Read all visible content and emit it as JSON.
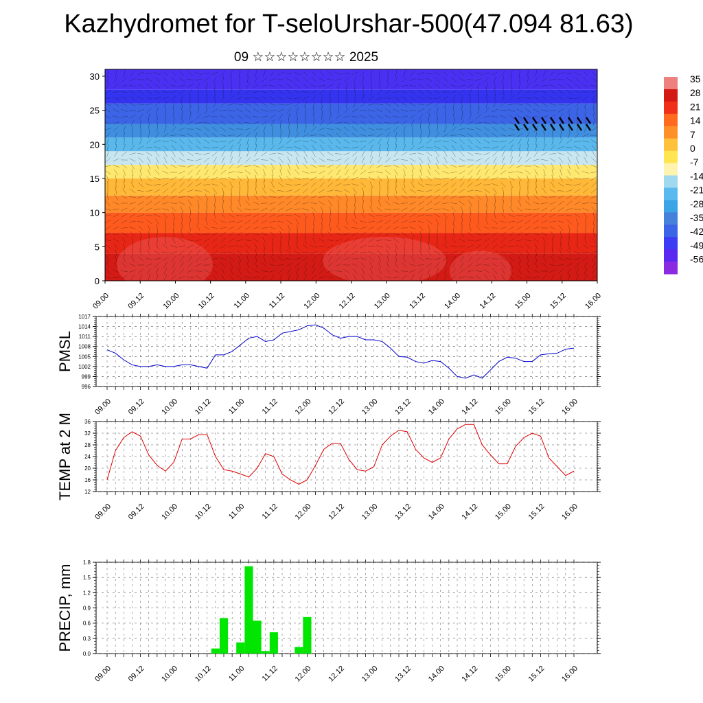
{
  "title": "Kazhydromet for T-seloUrshar-500(47.094 81.63)",
  "subtitle": "09 ☆☆☆☆☆☆☆☆ 2025",
  "time_labels": [
    "09.00",
    "09.12",
    "10.00",
    "10.12",
    "11.00",
    "11.12",
    "12.00",
    "12.12",
    "13.00",
    "13.12",
    "14.00",
    "14.12",
    "15.00",
    "15.12",
    "16.00"
  ],
  "colors": {
    "pmsl_line": "#0000cc",
    "temp_line": "#dd0000",
    "precip_bar": "#00e600",
    "palette": [
      "#8a2be2",
      "#5a28f0",
      "#3c3cf5",
      "#3c64e6",
      "#4682dc",
      "#3aa5e6",
      "#5abaf0",
      "#a0d8f0",
      "#fff3b0",
      "#ffe650",
      "#ffc03a",
      "#ff9028",
      "#ff6a1e",
      "#f03018",
      "#d41a14",
      "#ee8080"
    ]
  },
  "chart_data": [
    {
      "type": "heatmap",
      "name": "cross-section",
      "ylabel": "",
      "ylim": [
        0,
        31
      ],
      "y_ticks": [
        0,
        5,
        10,
        15,
        20,
        25,
        30
      ],
      "colorbar": {
        "ticks": [
          "35",
          "28",
          "21",
          "14",
          "7",
          "0",
          "-7",
          "-14",
          "-21",
          "-28",
          "-35",
          "-42",
          "-49",
          "-56"
        ]
      }
    },
    {
      "type": "line",
      "name": "PMSL",
      "ylabel": "PMSL",
      "ylim": [
        996,
        1017
      ],
      "y_ticks": [
        996,
        999,
        1002,
        1005,
        1008,
        1011,
        1014,
        1017
      ],
      "x": [
        0,
        1,
        2,
        3,
        4,
        5,
        6,
        7,
        8,
        9,
        10,
        11,
        12,
        13,
        14,
        15,
        16,
        17,
        18,
        19,
        20,
        21,
        22,
        23,
        24,
        25,
        26,
        27,
        28,
        29,
        30,
        31,
        32,
        33,
        34,
        35,
        36,
        37,
        38,
        39,
        40,
        41,
        42,
        43,
        44,
        45,
        46,
        47,
        48,
        49,
        50,
        51,
        52,
        53,
        54,
        55,
        56
      ],
      "values": [
        1007,
        1006,
        1004,
        1002.5,
        1002,
        1002,
        1002.5,
        1002,
        1002,
        1002.5,
        1002.5,
        1002,
        1001.5,
        1005.5,
        1005.5,
        1006.5,
        1008.5,
        1010.5,
        1011,
        1009.5,
        1010,
        1012,
        1012.5,
        1013,
        1014.2,
        1014.5,
        1013.5,
        1011.5,
        1010.5,
        1011,
        1011,
        1010,
        1010,
        1009.5,
        1007.5,
        1005,
        1004.8,
        1003.5,
        1003,
        1003.8,
        1003.5,
        1001.5,
        999,
        998.5,
        999.5,
        998.5,
        1001,
        1003.5,
        1004.8,
        1004.5,
        1003.5,
        1003.5,
        1005.5,
        1005.8,
        1006,
        1007.2,
        1007.5
      ]
    },
    {
      "type": "line",
      "name": "TEMP at 2 M",
      "ylabel": "TEMP at 2 M",
      "ylim": [
        12,
        36
      ],
      "y_ticks": [
        12,
        16,
        20,
        24,
        28,
        32,
        36
      ],
      "x": [
        0,
        1,
        2,
        3,
        4,
        5,
        6,
        7,
        8,
        9,
        10,
        11,
        12,
        13,
        14,
        15,
        16,
        17,
        18,
        19,
        20,
        21,
        22,
        23,
        24,
        25,
        26,
        27,
        28,
        29,
        30,
        31,
        32,
        33,
        34,
        35,
        36,
        37,
        38,
        39,
        40,
        41,
        42,
        43,
        44,
        45,
        46,
        47,
        48,
        49,
        50,
        51,
        52,
        53,
        54,
        55,
        56
      ],
      "values": [
        16,
        26,
        30.5,
        32.5,
        31,
        24.5,
        21,
        19,
        22,
        30,
        30,
        31.5,
        31.5,
        24,
        19.5,
        19,
        18,
        17,
        20,
        25,
        24,
        18,
        16,
        14.5,
        16,
        21,
        26.5,
        28.5,
        28.5,
        23,
        19.5,
        19,
        20.5,
        28,
        31,
        33,
        32.5,
        26.5,
        23.5,
        22,
        23.5,
        30,
        33.5,
        35,
        35,
        28,
        24.5,
        21.5,
        21.5,
        27.5,
        30.5,
        32,
        31,
        23.5,
        20.5,
        17.5,
        19
      ]
    },
    {
      "type": "bar",
      "name": "PRECIP, mm",
      "ylabel": "PRECIP, mm",
      "ylim": [
        0,
        1.8
      ],
      "y_ticks": [
        "0.0",
        "0.3",
        "0.6",
        "0.9",
        "1.2",
        "1.5",
        "1.8"
      ],
      "x": [
        0,
        1,
        2,
        3,
        4,
        5,
        6,
        7,
        8,
        9,
        10,
        11,
        12,
        13,
        14,
        15,
        16,
        17,
        18,
        19,
        20,
        21,
        22,
        23,
        24,
        25,
        26,
        27,
        28,
        29,
        30,
        31,
        32,
        33,
        34,
        35,
        36,
        37,
        38,
        39,
        40,
        41,
        42,
        43,
        44,
        45,
        46,
        47,
        48,
        49,
        50,
        51,
        52,
        53,
        54,
        55,
        56
      ],
      "values": [
        0,
        0,
        0,
        0,
        0,
        0,
        0,
        0,
        0,
        0,
        0,
        0,
        0,
        0.1,
        0.7,
        0,
        0.22,
        1.72,
        0.65,
        0.05,
        0.42,
        0,
        0,
        0.13,
        0.72,
        0,
        0,
        0,
        0,
        0,
        0,
        0,
        0,
        0,
        0,
        0,
        0,
        0,
        0,
        0,
        0,
        0,
        0,
        0,
        0,
        0,
        0,
        0,
        0,
        0,
        0,
        0,
        0,
        0,
        0,
        0,
        0
      ]
    }
  ]
}
